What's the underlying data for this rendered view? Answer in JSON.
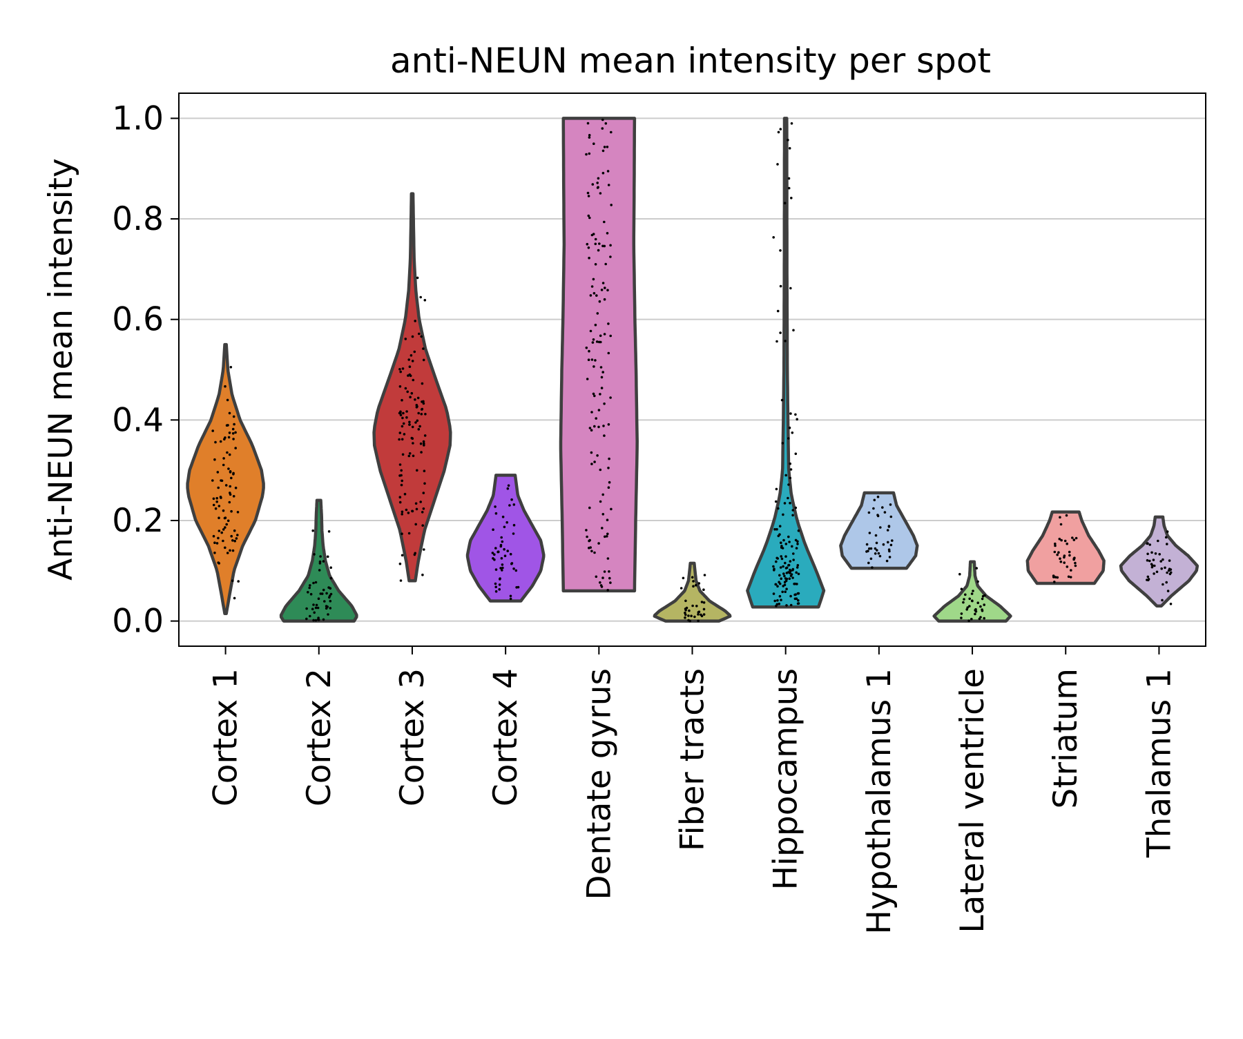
{
  "chart_data": {
    "type": "violin",
    "title": "anti-NEUN mean intensity per spot",
    "xlabel": "",
    "ylabel": "Anti-NEUN mean intensity",
    "ylim": [
      -0.05,
      1.05
    ],
    "yticks": [
      "0.0",
      "0.2",
      "0.4",
      "0.6",
      "0.8",
      "1.0"
    ],
    "ytick_values": [
      0.0,
      0.2,
      0.4,
      0.6,
      0.8,
      1.0
    ],
    "grid": "horizontal",
    "categories": [
      "Cortex 1",
      "Cortex 2",
      "Cortex 3",
      "Cortex 4",
      "Dentate gyrus",
      "Fiber tracts",
      "Hippocampus",
      "Hypothalamus 1",
      "Lateral ventricle",
      "Striatum",
      "Thalamus 1"
    ],
    "series": [
      {
        "category": "Cortex 1",
        "color": "#e07f2a",
        "min": 0.015,
        "max": 0.55,
        "profile": [
          [
            0.015,
            0.02
          ],
          [
            0.05,
            0.1
          ],
          [
            0.1,
            0.22
          ],
          [
            0.15,
            0.45
          ],
          [
            0.2,
            0.78
          ],
          [
            0.25,
            0.97
          ],
          [
            0.27,
            1.0
          ],
          [
            0.3,
            0.94
          ],
          [
            0.35,
            0.7
          ],
          [
            0.4,
            0.38
          ],
          [
            0.45,
            0.17
          ],
          [
            0.5,
            0.06
          ],
          [
            0.55,
            0.02
          ]
        ]
      },
      {
        "category": "Cortex 2",
        "color": "#2e8b57",
        "min": 0.0,
        "max": 0.24,
        "profile": [
          [
            0.0,
            0.92
          ],
          [
            0.01,
            1.0
          ],
          [
            0.03,
            0.86
          ],
          [
            0.06,
            0.52
          ],
          [
            0.09,
            0.28
          ],
          [
            0.12,
            0.17
          ],
          [
            0.15,
            0.11
          ],
          [
            0.18,
            0.08
          ],
          [
            0.21,
            0.07
          ],
          [
            0.24,
            0.05
          ]
        ]
      },
      {
        "category": "Cortex 3",
        "color": "#c13b3b",
        "min": 0.08,
        "max": 0.85,
        "profile": [
          [
            0.08,
            0.08
          ],
          [
            0.12,
            0.16
          ],
          [
            0.18,
            0.32
          ],
          [
            0.24,
            0.58
          ],
          [
            0.3,
            0.84
          ],
          [
            0.35,
            0.99
          ],
          [
            0.38,
            1.0
          ],
          [
            0.42,
            0.9
          ],
          [
            0.48,
            0.62
          ],
          [
            0.54,
            0.35
          ],
          [
            0.6,
            0.18
          ],
          [
            0.66,
            0.09
          ],
          [
            0.72,
            0.05
          ],
          [
            0.78,
            0.035
          ],
          [
            0.85,
            0.02
          ]
        ]
      },
      {
        "category": "Cortex 4",
        "color": "#a055e6",
        "min": 0.04,
        "max": 0.29,
        "profile": [
          [
            0.04,
            0.4
          ],
          [
            0.07,
            0.7
          ],
          [
            0.1,
            0.92
          ],
          [
            0.13,
            1.0
          ],
          [
            0.16,
            0.92
          ],
          [
            0.19,
            0.7
          ],
          [
            0.22,
            0.48
          ],
          [
            0.25,
            0.32
          ],
          [
            0.29,
            0.25
          ]
        ]
      },
      {
        "category": "Dentate gyrus",
        "color": "#d585c0",
        "min": 0.06,
        "max": 1.0,
        "profile": [
          [
            0.06,
            0.93
          ],
          [
            0.2,
            0.96
          ],
          [
            0.35,
            1.0
          ],
          [
            0.5,
            0.97
          ],
          [
            0.6,
            0.94
          ],
          [
            0.75,
            0.91
          ],
          [
            0.85,
            0.92
          ],
          [
            1.0,
            0.93
          ]
        ]
      },
      {
        "category": "Fiber tracts",
        "color": "#b5b563",
        "min": 0.0,
        "max": 0.115,
        "profile": [
          [
            0.0,
            0.7
          ],
          [
            0.01,
            1.0
          ],
          [
            0.02,
            0.86
          ],
          [
            0.04,
            0.45
          ],
          [
            0.06,
            0.2
          ],
          [
            0.08,
            0.1
          ],
          [
            0.1,
            0.07
          ],
          [
            0.115,
            0.05
          ]
        ]
      },
      {
        "category": "Hippocampus",
        "color": "#2aabbd",
        "min": 0.028,
        "max": 1.0,
        "profile": [
          [
            0.028,
            0.86
          ],
          [
            0.06,
            1.0
          ],
          [
            0.1,
            0.8
          ],
          [
            0.15,
            0.52
          ],
          [
            0.2,
            0.3
          ],
          [
            0.25,
            0.15
          ],
          [
            0.3,
            0.08
          ],
          [
            0.4,
            0.06
          ],
          [
            0.5,
            0.045
          ],
          [
            0.7,
            0.035
          ],
          [
            1.0,
            0.03
          ]
        ]
      },
      {
        "category": "Hypothalamus 1",
        "color": "#aec7e8",
        "min": 0.105,
        "max": 0.255,
        "profile": [
          [
            0.105,
            0.72
          ],
          [
            0.13,
            0.96
          ],
          [
            0.15,
            1.0
          ],
          [
            0.17,
            0.9
          ],
          [
            0.2,
            0.68
          ],
          [
            0.23,
            0.46
          ],
          [
            0.255,
            0.38
          ]
        ]
      },
      {
        "category": "Lateral ventricle",
        "color": "#9fd889",
        "min": 0.0,
        "max": 0.118,
        "profile": [
          [
            0.0,
            0.88
          ],
          [
            0.01,
            1.0
          ],
          [
            0.03,
            0.72
          ],
          [
            0.05,
            0.36
          ],
          [
            0.07,
            0.14
          ],
          [
            0.09,
            0.07
          ],
          [
            0.118,
            0.05
          ]
        ]
      },
      {
        "category": "Striatum",
        "color": "#f0a0a0",
        "min": 0.075,
        "max": 0.217,
        "profile": [
          [
            0.075,
            0.75
          ],
          [
            0.1,
            0.98
          ],
          [
            0.12,
            1.0
          ],
          [
            0.14,
            0.86
          ],
          [
            0.17,
            0.6
          ],
          [
            0.2,
            0.42
          ],
          [
            0.217,
            0.35
          ]
        ]
      },
      {
        "category": "Thalamus 1",
        "color": "#c3b1d5",
        "min": 0.03,
        "max": 0.207,
        "profile": [
          [
            0.03,
            0.06
          ],
          [
            0.05,
            0.32
          ],
          [
            0.08,
            0.78
          ],
          [
            0.1,
            0.98
          ],
          [
            0.11,
            1.0
          ],
          [
            0.13,
            0.76
          ],
          [
            0.15,
            0.44
          ],
          [
            0.17,
            0.22
          ],
          [
            0.19,
            0.13
          ],
          [
            0.207,
            0.1
          ]
        ]
      }
    ]
  }
}
